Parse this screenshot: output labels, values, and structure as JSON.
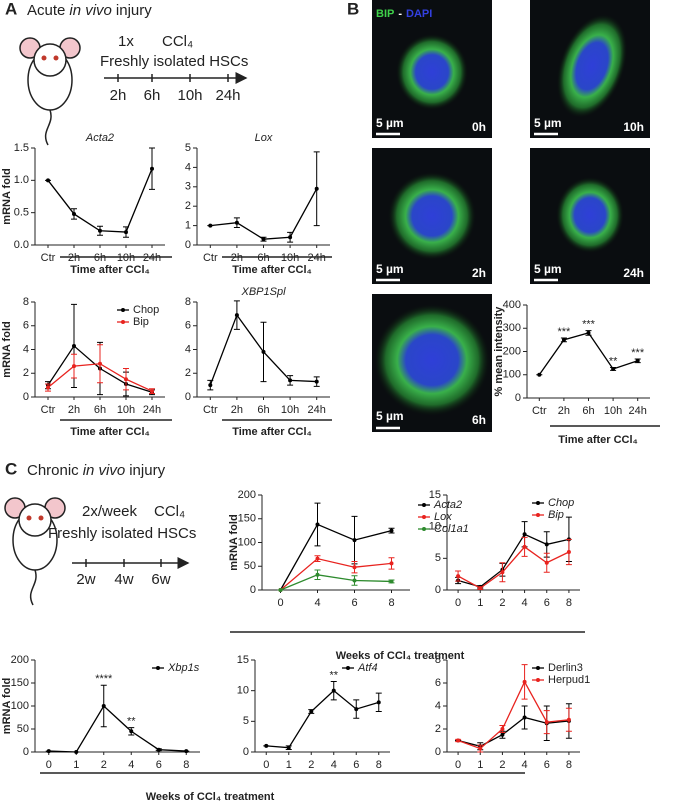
{
  "panel_labels": [
    "A",
    "B",
    "C"
  ],
  "acute": {
    "title": [
      "Acute",
      "in vivo",
      "injury"
    ],
    "dose": "1x",
    "agent": "CCl₄",
    "cells": "Freshly isolated HSCs",
    "timepoints": [
      "2h",
      "6h",
      "10h",
      "24h"
    ]
  },
  "chronic": {
    "title": [
      "Chronic",
      "in vivo",
      "injury"
    ],
    "dose": "2x/week",
    "agent": "CCl₄",
    "cells": "Freshly isolated HSCs",
    "timepoints": [
      "2w",
      "4w",
      "6w"
    ]
  },
  "microscopy": {
    "stain": [
      "BIP",
      "-",
      "DAPI"
    ],
    "scale": "5 µm",
    "labels": [
      "0h",
      "10h",
      "2h",
      "24h",
      "6h"
    ]
  },
  "chart_data": [
    {
      "type": "line",
      "title": "Acta2",
      "ylabel": "mRNA fold",
      "xlabel": "Time after CCl₄",
      "categories": [
        "Ctr",
        "2h",
        "6h",
        "10h",
        "24h"
      ],
      "series": [
        {
          "color": "#000000",
          "values": [
            1.0,
            0.48,
            0.22,
            0.2,
            1.18
          ],
          "errors": [
            0,
            0.08,
            0.07,
            0.08,
            0.32
          ]
        }
      ],
      "ylim": [
        0,
        1.5
      ],
      "yticks": [
        {
          "value": 0,
          "label": "0.0"
        },
        0.5,
        {
          "value": 1,
          "label": "1.0"
        },
        1.5
      ]
    },
    {
      "type": "line",
      "title": "Lox",
      "xlabel": "Time after CCl₄",
      "categories": [
        "Ctr",
        "2h",
        "6h",
        "10h",
        "24h"
      ],
      "series": [
        {
          "color": "#000000",
          "values": [
            1.0,
            1.15,
            0.3,
            0.4,
            2.9
          ],
          "errors": [
            0,
            0.25,
            0.1,
            0.25,
            1.9
          ]
        }
      ],
      "ylim": [
        0,
        5
      ],
      "yticks": [
        0,
        1,
        2,
        3,
        4,
        5
      ]
    },
    {
      "type": "line",
      "ylabel": "mRNA fold",
      "xlabel": "Time after CCl₄",
      "categories": [
        "Ctr",
        "2h",
        "6h",
        "10h",
        "24h"
      ],
      "legend": "upper right",
      "series": [
        {
          "name": "Chop",
          "color": "#000000",
          "values": [
            1.0,
            4.3,
            2.4,
            1.1,
            0.4
          ],
          "errors": [
            0.3,
            3.5,
            2.2,
            1.0,
            0.2
          ]
        },
        {
          "name": "Bip",
          "color": "#e8231f",
          "values": [
            0.8,
            2.6,
            2.8,
            1.5,
            0.5
          ],
          "errors": [
            0.3,
            1.0,
            1.6,
            0.9,
            0.2
          ]
        }
      ],
      "ylim": [
        0,
        8
      ],
      "yticks": [
        0,
        2,
        4,
        6,
        8
      ]
    },
    {
      "type": "line",
      "title": "XBP1Spl",
      "xlabel": "Time after CCl₄",
      "categories": [
        "Ctr",
        "2h",
        "6h",
        "10h",
        "24h"
      ],
      "series": [
        {
          "color": "#000000",
          "values": [
            1.0,
            6.9,
            3.8,
            1.4,
            1.3
          ],
          "errors": [
            0.4,
            1.2,
            2.5,
            0.4,
            0.4
          ]
        }
      ],
      "ylim": [
        0,
        8
      ],
      "yticks": [
        0,
        2,
        4,
        6,
        8
      ]
    },
    {
      "type": "line",
      "ylabel": "% mean intensity",
      "xlabel": "Time after CCl₄",
      "categories": [
        "Ctr",
        "2h",
        "6h",
        "10h",
        "24h"
      ],
      "series": [
        {
          "color": "#000000",
          "values": [
            100,
            250,
            280,
            125,
            160
          ],
          "errors": [
            0,
            8,
            10,
            6,
            8
          ]
        }
      ],
      "annotations": [
        null,
        "***",
        "***",
        "**",
        "***"
      ],
      "ylim": [
        0,
        400
      ],
      "yticks": [
        0,
        100,
        200,
        300,
        400
      ]
    },
    {
      "type": "line",
      "ylabel": "mRNA fold",
      "xlabel": "Weeks of CCl₄ treatment",
      "categories": [
        "0",
        "4",
        "6",
        "8"
      ],
      "legend": "outside right",
      "legend_italic": true,
      "series": [
        {
          "name": "Acta2",
          "color": "#000000",
          "values": [
            0,
            138,
            105,
            125
          ],
          "errors": [
            0,
            45,
            50,
            5
          ]
        },
        {
          "name": "Lox",
          "color": "#e8231f",
          "values": [
            0,
            66,
            48,
            56
          ],
          "errors": [
            0,
            6,
            12,
            12
          ]
        },
        {
          "name": "Col1a1",
          "color": "#2e8b2e",
          "values": [
            0,
            32,
            20,
            18
          ],
          "errors": [
            0,
            10,
            10,
            3
          ]
        }
      ],
      "ylim": [
        0,
        200
      ],
      "yticks": [
        0,
        50,
        100,
        150,
        200
      ]
    },
    {
      "type": "line",
      "categories": [
        "0",
        "1",
        "2",
        "4",
        "6",
        "8"
      ],
      "legend": "upper right",
      "legend_italic": true,
      "series": [
        {
          "name": "Chop",
          "color": "#000000",
          "values": [
            1.5,
            0.5,
            3.2,
            8.8,
            7.2,
            8.0
          ],
          "errors": [
            0.5,
            0.2,
            1.0,
            2.0,
            2.0,
            3.5
          ]
        },
        {
          "name": "Bip",
          "color": "#e8231f",
          "values": [
            2.2,
            0.3,
            2.8,
            6.8,
            4.3,
            6.0
          ],
          "errors": [
            0.8,
            0.2,
            1.5,
            1.5,
            1.5,
            2.0
          ]
        }
      ],
      "ylim": [
        0,
        15
      ],
      "yticks": [
        0,
        5,
        10,
        15
      ]
    },
    {
      "type": "line",
      "ylabel": "mRNA fold",
      "xlabel": "Weeks of CCl₄ treatment",
      "categories": [
        "0",
        "1",
        "2",
        "4",
        "6",
        "8"
      ],
      "legend": "upper right",
      "legend_italic": true,
      "series": [
        {
          "name": "Xbp1s",
          "color": "#000000",
          "values": [
            2,
            0,
            100,
            45,
            5,
            2
          ],
          "errors": [
            0,
            0,
            45,
            8,
            2,
            0
          ]
        }
      ],
      "annotations": [
        null,
        null,
        "****",
        "**",
        null,
        null
      ],
      "ylim": [
        0,
        200
      ],
      "yticks": [
        0,
        50,
        100,
        150,
        200
      ]
    },
    {
      "type": "line",
      "categories": [
        "0",
        "1",
        "2",
        "4",
        "6",
        "8"
      ],
      "legend": "upper right",
      "legend_italic": true,
      "series": [
        {
          "name": "Atf4",
          "color": "#000000",
          "values": [
            1,
            0.7,
            6.6,
            10,
            7,
            8.1
          ],
          "errors": [
            0,
            0.3,
            0.3,
            1.5,
            1.5,
            1.5
          ]
        }
      ],
      "annotations": [
        null,
        null,
        null,
        "**",
        null,
        null
      ],
      "ylim": [
        0,
        15
      ],
      "yticks": [
        0,
        5,
        10,
        15
      ]
    },
    {
      "type": "line",
      "categories": [
        "0",
        "1",
        "2",
        "4",
        "6",
        "8"
      ],
      "legend": "upper right",
      "series": [
        {
          "name": "Derlin3",
          "color": "#000000",
          "values": [
            1,
            0.5,
            1.5,
            3,
            2.5,
            2.7
          ],
          "errors": [
            0,
            0.3,
            0.3,
            1.0,
            1.5,
            1.5
          ]
        },
        {
          "name": "Herpud1",
          "color": "#e8231f",
          "values": [
            1,
            0.3,
            2,
            6.1,
            2.6,
            2.8
          ],
          "errors": [
            0.1,
            0.3,
            0.3,
            1.5,
            1.0,
            1.0
          ]
        }
      ],
      "ylim": [
        0,
        8
      ],
      "yticks": [
        0,
        2,
        4,
        6,
        8
      ]
    }
  ]
}
